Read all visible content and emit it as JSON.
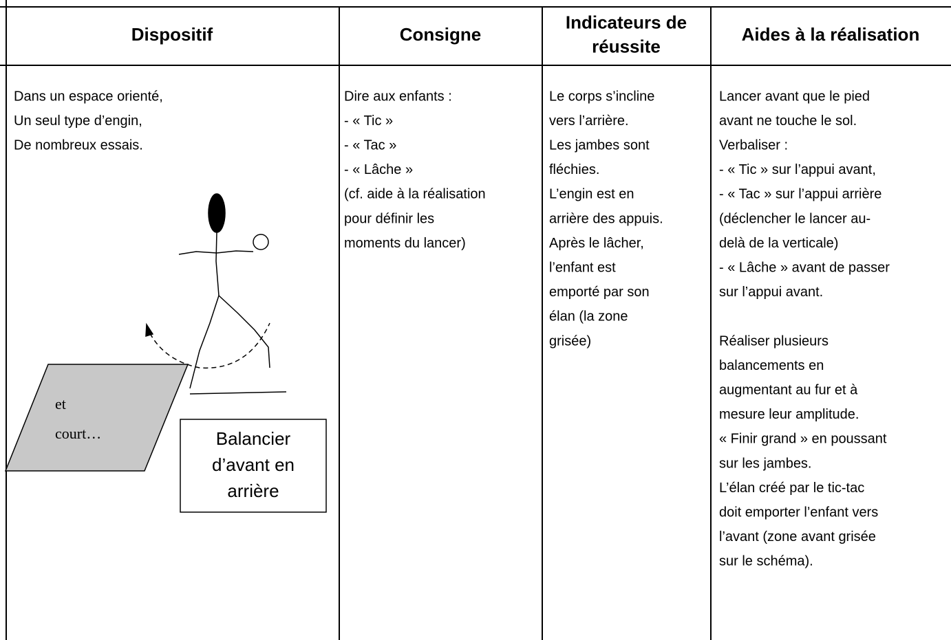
{
  "table": {
    "headers": [
      {
        "lines": [
          "Dispositif"
        ]
      },
      {
        "lines": [
          "Consigne"
        ]
      },
      {
        "lines": [
          "Indicateurs de",
          "réussite"
        ]
      },
      {
        "lines": [
          "Aides à la réalisation"
        ]
      }
    ],
    "cells": [
      {
        "paragraphs": [
          [
            "Dans un espace orienté,",
            "Un seul type d’engin,",
            "De nombreux essais."
          ]
        ]
      },
      {
        "paragraphs": [
          [
            "Dire aux enfants :",
            "- « Tic »",
            "- « Tac »",
            "- « Lâche »",
            "(cf. aide à la réalisation",
            "pour définir les",
            "moments du lancer)"
          ]
        ]
      },
      {
        "paragraphs": [
          [
            "Le corps s’incline",
            "vers l’arrière.",
            "Les jambes sont",
            "fléchies.",
            "L’engin est en",
            "arrière des appuis.",
            "Après le lâcher,",
            "l’enfant est",
            "emporté par son",
            "élan (la zone",
            "grisée)"
          ]
        ]
      },
      {
        "paragraphs": [
          [
            "Lancer avant que le pied",
            "avant ne touche le sol.",
            "Verbaliser :",
            "- « Tic » sur l’appui avant,",
            "- « Tac » sur l’appui arrière",
            "(déclencher le lancer au-",
            "delà de la verticale)",
            "- « Lâche » avant de passer",
            "sur l’appui avant."
          ],
          [
            "Réaliser plusieurs",
            "balancements en",
            "augmentant au fur et à",
            "mesure leur amplitude.",
            "« Finir grand » en poussant",
            "sur les jambes.",
            "L’élan créé par le tic-tac",
            "doit emporter l’enfant vers",
            "l’avant (zone avant grisée",
            "sur le schéma)."
          ]
        ]
      }
    ]
  },
  "diagram": {
    "zone_labels": [
      "et",
      "court…"
    ],
    "box_lines": [
      "Balancier",
      "d’avant en",
      "arrière"
    ]
  }
}
